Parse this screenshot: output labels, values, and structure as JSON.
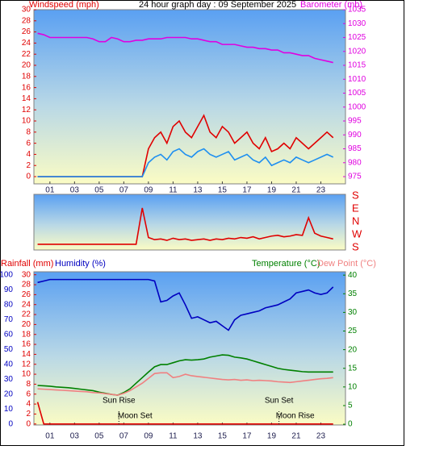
{
  "chart_data": [
    {
      "type": "line",
      "title": "24 hour graph day : 09 September 2025",
      "y_label": "Windspeed (mph)",
      "y_color": "#e00000",
      "y2_label": "Barometer (mb)",
      "y2_color": "#e000e0",
      "x": [
        0,
        0.5,
        1,
        1.5,
        2,
        2.5,
        3,
        3.5,
        4,
        4.5,
        5,
        5.5,
        6,
        6.5,
        7,
        7.5,
        8,
        8.5,
        9,
        9.5,
        10,
        10.5,
        11,
        11.5,
        12,
        12.5,
        13,
        13.5,
        14,
        14.5,
        15,
        15.5,
        16,
        16.5,
        17,
        17.5,
        18,
        18.5,
        19,
        19.5,
        20,
        20.5,
        21,
        21.5,
        22,
        22.5,
        23,
        23.5,
        24
      ],
      "xlim": [
        -0.3,
        25
      ],
      "xticks": [
        {
          "value": 1,
          "label": "01"
        },
        {
          "value": 3,
          "label": "03"
        },
        {
          "value": 5,
          "label": "05"
        },
        {
          "value": 7,
          "label": "07"
        },
        {
          "value": 9,
          "label": "09"
        },
        {
          "value": 11,
          "label": "11"
        },
        {
          "value": 13,
          "label": "13"
        },
        {
          "value": 15,
          "label": "15"
        },
        {
          "value": 17,
          "label": "17"
        },
        {
          "value": 19,
          "label": "19"
        },
        {
          "value": 21,
          "label": "21"
        },
        {
          "value": 23,
          "label": "23"
        }
      ],
      "ylim": [
        -1.3,
        30
      ],
      "yticks": [
        0,
        2,
        4,
        6,
        8,
        10,
        12,
        14,
        16,
        18,
        20,
        22,
        24,
        26,
        28,
        30
      ],
      "y2lim": [
        972.4,
        1035
      ],
      "y2ticks": [
        975,
        980,
        985,
        990,
        995,
        1000,
        1005,
        1010,
        1015,
        1020,
        1025,
        1030,
        1035
      ],
      "series": [
        {
          "axis": "y2",
          "color": "#e000e0",
          "values": [
            1026.5,
            1026,
            1025,
            1025,
            1025,
            1025,
            1025,
            1025,
            1025,
            1024.5,
            1023.5,
            1023.5,
            1025,
            1024.5,
            1023.5,
            1023.5,
            1024,
            1024,
            1024.5,
            1024.5,
            1024.5,
            1025,
            1025,
            1025,
            1025,
            1024.5,
            1024.5,
            1024,
            1023.5,
            1023.5,
            1022.5,
            1022.5,
            1022.5,
            1022,
            1021.5,
            1021.5,
            1021,
            1021,
            1020.5,
            1020.5,
            1019.5,
            1019.5,
            1019,
            1018.5,
            1018.5,
            1017.5,
            1017,
            1016.5,
            1016
          ]
        },
        {
          "axis": "y",
          "color": "#e00000",
          "values": [
            0,
            0,
            0,
            0,
            0,
            0,
            0,
            0,
            0,
            0,
            0,
            0,
            0,
            0,
            0,
            0,
            0,
            0,
            5,
            7,
            8,
            6,
            9,
            10,
            8,
            7,
            9,
            11,
            8,
            7,
            9,
            8,
            6,
            7,
            8,
            6,
            5,
            7,
            4.5,
            5,
            6,
            5,
            7,
            6,
            5,
            6,
            7,
            8,
            7
          ]
        },
        {
          "axis": "y",
          "color": "#1e8ff0",
          "values": [
            0,
            0,
            0,
            0,
            0,
            0,
            0,
            0,
            0,
            0,
            0,
            0,
            0,
            0,
            0,
            0,
            0,
            0,
            2.5,
            3.5,
            4,
            3,
            4.5,
            5,
            4,
            3.5,
            4.5,
            5,
            4,
            3.5,
            4,
            4.5,
            3,
            3.5,
            4,
            3,
            2.5,
            3.5,
            2,
            2.5,
            3,
            2.5,
            3.5,
            3,
            2.5,
            3,
            3.5,
            4,
            3.5
          ]
        }
      ]
    },
    {
      "type": "line",
      "x": [
        0,
        0.5,
        1,
        1.5,
        2,
        2.5,
        3,
        3.5,
        4,
        4.5,
        5,
        5.5,
        6,
        6.5,
        7,
        7.5,
        8,
        8.5,
        9,
        9.5,
        10,
        10.5,
        11,
        11.5,
        12,
        12.5,
        13,
        13.5,
        14,
        14.5,
        15,
        15.5,
        16,
        16.5,
        17,
        17.5,
        18,
        18.5,
        19,
        19.5,
        20,
        20.5,
        21,
        21.5,
        22,
        22.5,
        23,
        23.5,
        24
      ],
      "xlim": [
        -0.3,
        25
      ],
      "ylim": [
        -197,
        191
      ],
      "y_color": "#e00000",
      "yticks": [
        {
          "value": 180,
          "label": "S"
        },
        {
          "value": 90,
          "label": "E"
        },
        {
          "value": 0,
          "label": "N"
        },
        {
          "value": -90,
          "label": "W"
        },
        {
          "value": -180,
          "label": "S"
        }
      ],
      "series": [
        {
          "axis": "y",
          "color": "#e00000",
          "values": [
            -157,
            -157,
            -157,
            -157,
            -157,
            -157,
            -157,
            -157,
            -157,
            -157,
            -157,
            -157,
            -157,
            -157,
            -157,
            -157,
            -157,
            96,
            -110,
            -125,
            -120,
            -130,
            -115,
            -125,
            -120,
            -130,
            -125,
            -120,
            -130,
            -120,
            -125,
            -115,
            -120,
            -110,
            -115,
            -105,
            -120,
            -110,
            -100,
            -95,
            -105,
            -100,
            -90,
            -95,
            28,
            -80,
            -100,
            -110,
            -120
          ]
        }
      ]
    },
    {
      "type": "line",
      "y_label": "Humidity (%)",
      "y_color": "#0000c0",
      "y2_label": "Temperature (°C)",
      "y2_color": "#008000",
      "y3_label": "Rainfall (mm)",
      "y3_color": "#e00000",
      "x": [
        0,
        0.5,
        1,
        1.5,
        2,
        2.5,
        3,
        3.5,
        4,
        4.5,
        5,
        5.5,
        6,
        6.5,
        7,
        7.5,
        8,
        8.5,
        9,
        9.5,
        10,
        10.5,
        11,
        11.5,
        12,
        12.5,
        13,
        13.5,
        14,
        14.5,
        15,
        15.5,
        16,
        16.5,
        17,
        17.5,
        18,
        18.5,
        19,
        19.5,
        20,
        20.5,
        21,
        21.5,
        22,
        22.5,
        23,
        23.5,
        24
      ],
      "xlim": [
        -0.3,
        25
      ],
      "xticks": [
        {
          "value": 1,
          "label": "01"
        },
        {
          "value": 3,
          "label": "03"
        },
        {
          "value": 5,
          "label": "05"
        },
        {
          "value": 7,
          "label": "07"
        },
        {
          "value": 9,
          "label": "09"
        },
        {
          "value": 11,
          "label": "11"
        },
        {
          "value": 13,
          "label": "13"
        },
        {
          "value": 15,
          "label": "15"
        },
        {
          "value": 17,
          "label": "17"
        },
        {
          "value": 19,
          "label": "19"
        },
        {
          "value": 21,
          "label": "21"
        },
        {
          "value": 23,
          "label": "23"
        }
      ],
      "ylim": [
        -0.5,
        102.2
      ],
      "yticks": [
        0,
        10,
        20,
        30,
        40,
        50,
        60,
        70,
        80,
        90,
        100
      ],
      "y2lim": [
        -0.2,
        40.9
      ],
      "y2ticks": [
        0,
        5,
        10,
        15,
        20,
        25,
        30,
        35,
        40
      ],
      "y3lim": [
        -0.2,
        30.6
      ],
      "y3ticks": [
        0,
        2,
        4,
        6,
        8,
        10,
        12,
        14,
        16,
        18,
        20,
        22,
        24,
        26,
        28,
        30
      ],
      "series": [
        {
          "axis": "y",
          "color": "#0000c0",
          "values": [
            95,
            96,
            97,
            97,
            97,
            97,
            97,
            97,
            97,
            97,
            97,
            97,
            97,
            97,
            97,
            97,
            97,
            97,
            97,
            96,
            82,
            83,
            86,
            88,
            80,
            71,
            72,
            70,
            68,
            69,
            66,
            63,
            70,
            73,
            74,
            75,
            76,
            78,
            79,
            80,
            82,
            84,
            88,
            89,
            90,
            88,
            87,
            88,
            92
          ]
        },
        {
          "axis": "y2",
          "color": "#008000",
          "values": [
            10.4,
            10.3,
            10.2,
            10,
            9.9,
            9.8,
            9.6,
            9.4,
            9.2,
            9,
            8.6,
            8.3,
            8,
            7.8,
            8.5,
            9.5,
            11,
            12.5,
            14,
            15.4,
            16,
            16,
            16.5,
            17,
            17.3,
            17.2,
            17.3,
            17.5,
            18,
            18.3,
            18.6,
            18.5,
            18,
            17.8,
            17.5,
            17,
            16.5,
            16,
            15.5,
            15,
            14.7,
            14.5,
            14.3,
            14.1,
            14,
            14,
            14,
            14,
            14
          ]
        },
        {
          "axis": "y2",
          "name": "Dew Point (°C)",
          "color": "#f08080",
          "values": [
            9.5,
            9.4,
            9.3,
            9.2,
            9.1,
            9,
            8.9,
            8.8,
            8.7,
            8.5,
            8.4,
            8.2,
            8,
            7.8,
            8.3,
            9,
            10,
            11,
            12.3,
            13.6,
            13.8,
            13.8,
            12.5,
            12.8,
            13.4,
            13,
            12.8,
            12.6,
            12.4,
            12.2,
            12,
            11.9,
            12,
            11.8,
            11.9,
            11.7,
            11.8,
            11.7,
            11.6,
            11.4,
            11.3,
            11.2,
            11.4,
            11.6,
            11.8,
            12,
            12.2,
            12.3,
            12.5
          ]
        },
        {
          "axis": "y3",
          "color": "#e00000",
          "values": [
            4.4,
            0,
            0,
            0,
            0,
            0,
            0,
            0,
            0,
            0,
            0,
            0,
            0,
            0,
            0,
            0,
            0,
            0,
            0,
            0,
            0,
            0,
            0,
            0,
            0,
            0,
            0,
            0,
            0,
            0,
            0,
            0,
            0,
            0,
            0,
            0,
            0,
            0,
            0,
            0,
            0,
            0,
            0,
            0,
            0,
            0,
            0,
            0,
            0
          ]
        }
      ],
      "annotations": [
        {
          "text": "Sun Rise",
          "x": 6.6
        },
        {
          "text": "Sun Set",
          "x": 19.6
        }
      ],
      "moon_events": [
        {
          "text": "Moon Set",
          "x": 6.6
        },
        {
          "text": "Moon Rise",
          "x": 19.6
        }
      ]
    }
  ]
}
